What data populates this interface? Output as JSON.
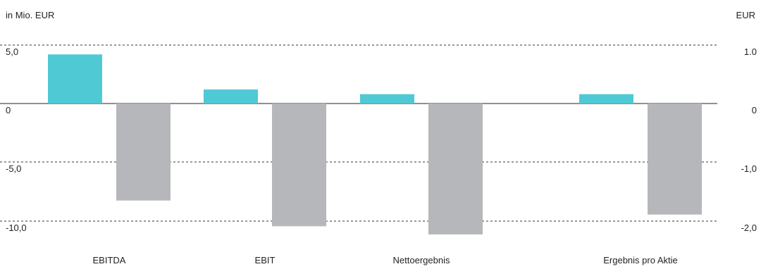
{
  "chart_data": {
    "type": "bar",
    "ylabel_left": "in Mio. EUR",
    "ylabel_right": "EUR",
    "categories": [
      "EBITDA",
      "EBIT",
      "Nettoergebnis",
      "Ergebnis pro Aktie"
    ],
    "left_ticks": [
      "5,0",
      "0",
      "-5,0",
      "-10,0"
    ],
    "right_ticks": [
      "1.0",
      "0",
      "-1,0",
      "-2,0"
    ],
    "ylim_left": [
      -10,
      5
    ],
    "ylim_right": [
      -2,
      1
    ],
    "grid": "dashed",
    "series": [
      {
        "color": "#4fc9d4",
        "values": [
          4.2,
          1.2,
          0.8,
          0.16
        ]
      },
      {
        "color": "#b6b7bb",
        "values": [
          -8.3,
          -10.5,
          -11.2,
          -1.9
        ]
      }
    ],
    "axis_per_category": [
      "left",
      "left",
      "left",
      "right"
    ]
  }
}
